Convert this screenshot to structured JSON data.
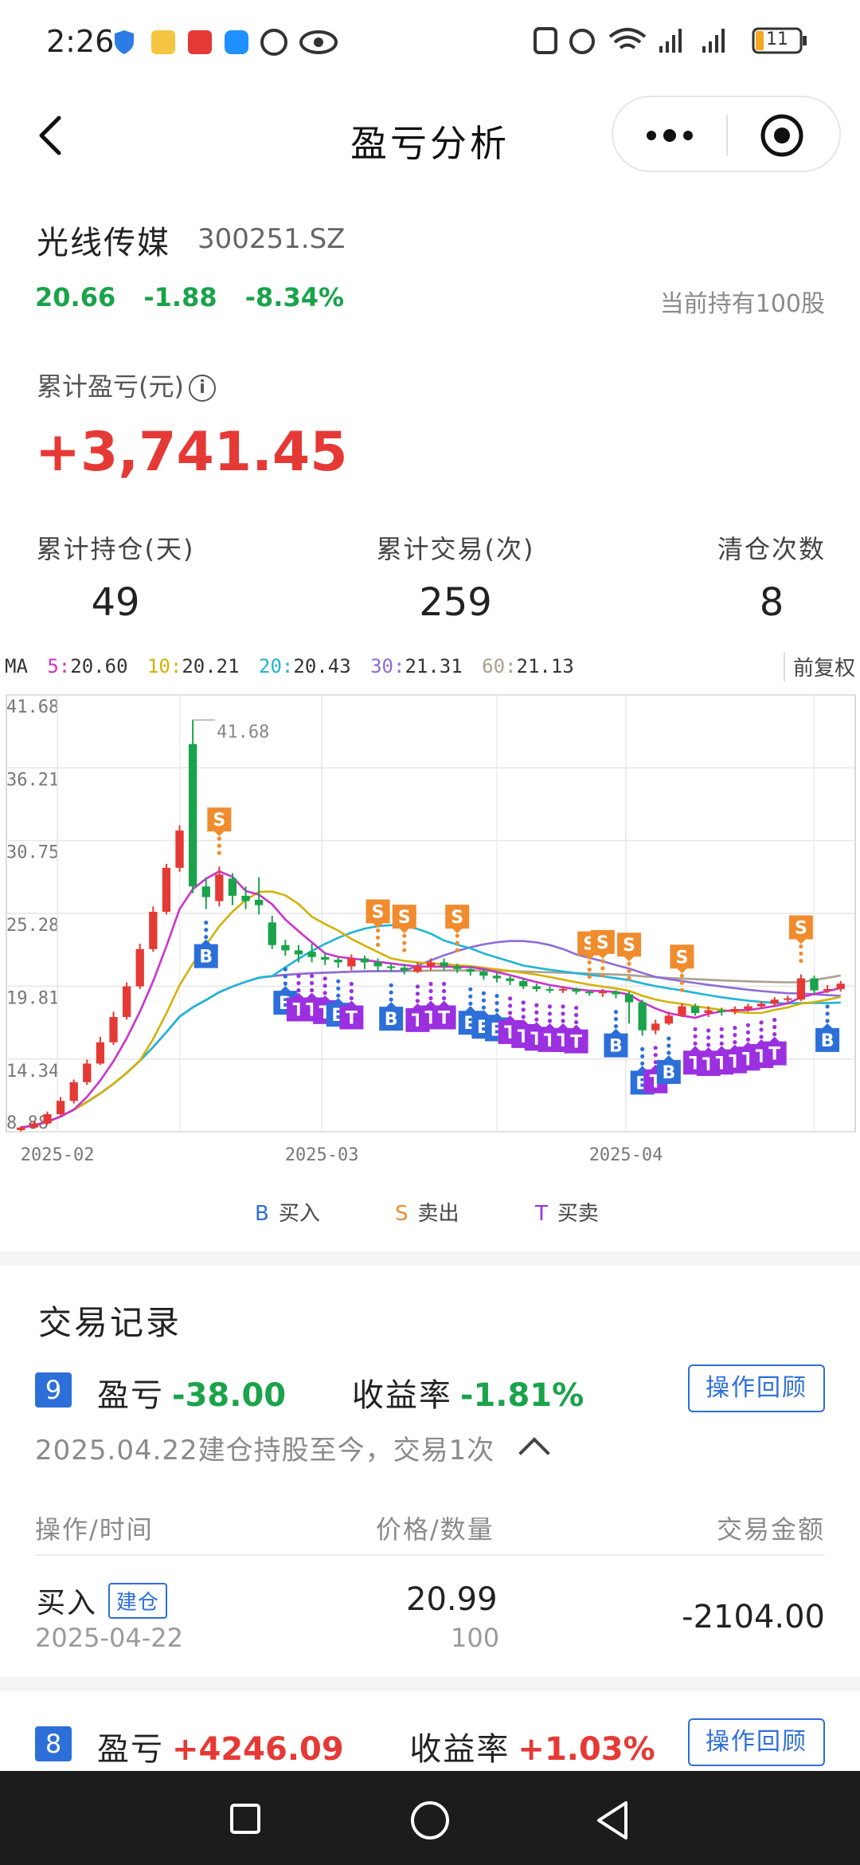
{
  "status_bar": {
    "time": "2:26",
    "battery": "11"
  },
  "nav": {
    "title": "盈亏分析"
  },
  "stock": {
    "name": "光线传媒",
    "code": "300251.SZ",
    "price": "20.66",
    "change": "-1.88",
    "change_pct": "-8.34%",
    "holding": "当前持有100股"
  },
  "summary": {
    "cum_label": "累计盈亏(元)",
    "info_glyph": "i",
    "cum_value": "+3,741.45",
    "stats": [
      {
        "label": "累计持仓(天)",
        "value": "49"
      },
      {
        "label": "累计交易(次)",
        "value": "259"
      },
      {
        "label": "清仓次数",
        "value": "8"
      }
    ]
  },
  "ma_legend": {
    "prefix": "MA",
    "items": [
      {
        "name": "5:",
        "value": "20.60",
        "color": "#cc33cc"
      },
      {
        "name": "10:",
        "value": "20.21",
        "color": "#d4b106"
      },
      {
        "name": "20:",
        "value": "20.43",
        "color": "#1fb5d6"
      },
      {
        "name": "30:",
        "value": "21.31",
        "color": "#8e6bd8"
      },
      {
        "name": "60:",
        "value": "21.13",
        "color": "#aaa08f"
      }
    ],
    "adjust": "前复权"
  },
  "chart_data": {
    "type": "candlestick",
    "y_ticks": [
      "41.68",
      "36.21",
      "30.75",
      "25.28",
      "19.81",
      "14.34",
      "8.88"
    ],
    "ylim": [
      8.88,
      41.68
    ],
    "max_label": "41.68",
    "x_ticks": [
      "2025-02",
      "2025-03",
      "2025-04"
    ],
    "up_color": "#e53935",
    "down_color": "#1aa34a",
    "candles": [
      [
        9.0,
        9.2,
        8.9,
        9.3
      ],
      [
        9.2,
        9.5,
        9.1,
        9.7
      ],
      [
        9.5,
        10.2,
        9.4,
        10.4
      ],
      [
        10.2,
        11.2,
        10.1,
        11.5
      ],
      [
        11.2,
        12.6,
        11.0,
        12.8
      ],
      [
        12.6,
        14.0,
        12.4,
        14.3
      ],
      [
        14.0,
        15.6,
        13.9,
        16.0
      ],
      [
        15.6,
        17.5,
        15.4,
        17.9
      ],
      [
        17.5,
        19.8,
        17.3,
        20.1
      ],
      [
        19.8,
        22.6,
        19.6,
        23.0
      ],
      [
        22.6,
        25.4,
        22.4,
        25.8
      ],
      [
        25.4,
        28.7,
        25.2,
        29.0
      ],
      [
        28.7,
        31.5,
        28.4,
        31.9
      ],
      [
        38.0,
        27.3,
        26.8,
        39.8
      ],
      [
        27.3,
        26.5,
        25.6,
        28.0
      ],
      [
        26.2,
        28.2,
        25.8,
        28.8
      ],
      [
        27.9,
        26.6,
        25.9,
        28.3
      ],
      [
        26.6,
        26.2,
        25.6,
        27.3
      ],
      [
        26.3,
        25.9,
        25.2,
        28.0
      ],
      [
        24.6,
        22.9,
        22.6,
        25.1
      ],
      [
        22.9,
        22.5,
        22.1,
        23.3
      ],
      [
        22.5,
        22.2,
        21.6,
        22.9
      ],
      [
        22.4,
        22.0,
        21.6,
        23.0
      ],
      [
        22.0,
        21.8,
        21.4,
        22.3
      ],
      [
        21.8,
        21.6,
        21.2,
        22.0
      ],
      [
        21.3,
        21.9,
        21.0,
        22.2
      ],
      [
        21.9,
        21.6,
        21.1,
        22.1
      ],
      [
        21.6,
        21.3,
        20.9,
        21.9
      ],
      [
        21.3,
        21.2,
        20.9,
        21.5
      ],
      [
        21.2,
        21.0,
        20.7,
        21.5
      ],
      [
        20.9,
        21.3,
        20.8,
        21.6
      ],
      [
        21.3,
        21.6,
        21.0,
        21.9
      ],
      [
        21.6,
        21.3,
        21.0,
        21.9
      ],
      [
        21.3,
        21.1,
        20.8,
        21.5
      ],
      [
        21.1,
        20.9,
        20.6,
        21.3
      ],
      [
        20.9,
        20.6,
        20.3,
        21.1
      ],
      [
        20.6,
        20.4,
        20.1,
        20.8
      ],
      [
        20.4,
        20.2,
        19.9,
        20.6
      ],
      [
        20.2,
        19.8,
        19.6,
        20.4
      ],
      [
        19.8,
        19.6,
        19.4,
        20.0
      ],
      [
        19.6,
        19.5,
        19.3,
        19.8
      ],
      [
        19.5,
        19.6,
        19.3,
        19.8
      ],
      [
        19.6,
        19.4,
        19.2,
        19.7
      ],
      [
        19.4,
        19.3,
        19.1,
        19.5
      ],
      [
        19.3,
        19.4,
        19.0,
        19.6
      ],
      [
        19.4,
        19.2,
        18.9,
        19.5
      ],
      [
        19.2,
        18.6,
        17.0,
        19.4
      ],
      [
        18.6,
        16.5,
        16.1,
        18.8
      ],
      [
        16.5,
        17.0,
        16.2,
        17.3
      ],
      [
        17.0,
        17.6,
        16.9,
        17.9
      ],
      [
        17.6,
        18.3,
        17.5,
        18.5
      ],
      [
        18.3,
        17.8,
        17.6,
        18.5
      ],
      [
        17.8,
        18.0,
        17.5,
        18.3
      ],
      [
        18.0,
        17.9,
        17.6,
        18.2
      ],
      [
        17.9,
        18.1,
        17.7,
        18.3
      ],
      [
        18.1,
        18.3,
        17.9,
        18.5
      ],
      [
        18.3,
        18.5,
        18.1,
        18.7
      ],
      [
        18.5,
        18.8,
        18.3,
        19.0
      ],
      [
        18.8,
        18.9,
        18.6,
        19.1
      ],
      [
        18.8,
        20.4,
        18.7,
        20.7
      ],
      [
        20.4,
        19.5,
        19.2,
        20.6
      ],
      [
        19.5,
        19.6,
        19.3,
        19.9
      ],
      [
        19.6,
        20.0,
        19.4,
        20.2
      ]
    ],
    "trade_markers": [
      {
        "type": "B",
        "i": 14,
        "side": "below"
      },
      {
        "type": "S",
        "i": 15,
        "side": "above"
      },
      {
        "type": "B",
        "i": 20,
        "side": "below"
      },
      {
        "type": "T",
        "i": 21,
        "side": "below"
      },
      {
        "type": "T",
        "i": 22,
        "side": "below"
      },
      {
        "type": "T",
        "i": 23,
        "side": "below"
      },
      {
        "type": "B",
        "i": 24,
        "side": "below"
      },
      {
        "type": "T",
        "i": 25,
        "side": "below"
      },
      {
        "type": "S",
        "i": 27,
        "side": "above"
      },
      {
        "type": "B",
        "i": 28,
        "side": "below"
      },
      {
        "type": "S",
        "i": 29,
        "side": "above"
      },
      {
        "type": "T",
        "i": 30,
        "side": "below"
      },
      {
        "type": "T",
        "i": 31,
        "side": "below"
      },
      {
        "type": "T",
        "i": 32,
        "side": "below"
      },
      {
        "type": "S",
        "i": 33,
        "side": "above"
      },
      {
        "type": "B",
        "i": 34,
        "side": "below"
      },
      {
        "type": "B",
        "i": 35,
        "side": "below"
      },
      {
        "type": "B",
        "i": 36,
        "side": "below"
      },
      {
        "type": "T",
        "i": 37,
        "side": "below"
      },
      {
        "type": "T",
        "i": 38,
        "side": "below"
      },
      {
        "type": "T",
        "i": 39,
        "side": "below"
      },
      {
        "type": "T",
        "i": 40,
        "side": "below"
      },
      {
        "type": "T",
        "i": 41,
        "side": "below"
      },
      {
        "type": "T",
        "i": 42,
        "side": "below"
      },
      {
        "type": "S",
        "i": 43,
        "side": "above"
      },
      {
        "type": "S",
        "i": 44,
        "side": "above"
      },
      {
        "type": "B",
        "i": 45,
        "side": "below"
      },
      {
        "type": "S",
        "i": 46,
        "side": "above"
      },
      {
        "type": "B",
        "i": 47,
        "side": "below"
      },
      {
        "type": "T",
        "i": 48,
        "side": "below"
      },
      {
        "type": "B",
        "i": 49,
        "side": "below"
      },
      {
        "type": "S",
        "i": 50,
        "side": "above"
      },
      {
        "type": "T",
        "i": 51,
        "side": "below"
      },
      {
        "type": "T",
        "i": 52,
        "side": "below"
      },
      {
        "type": "T",
        "i": 53,
        "side": "below"
      },
      {
        "type": "T",
        "i": 54,
        "side": "below"
      },
      {
        "type": "T",
        "i": 55,
        "side": "below"
      },
      {
        "type": "T",
        "i": 56,
        "side": "below"
      },
      {
        "type": "T",
        "i": 57,
        "side": "below"
      },
      {
        "type": "S",
        "i": 59,
        "side": "above"
      },
      {
        "type": "B",
        "i": 61,
        "side": "below"
      }
    ],
    "marker_colors": {
      "B": "#2d6fd8",
      "S": "#f08c2e",
      "T": "#9b30e0"
    }
  },
  "legend": {
    "items": [
      {
        "letter": "B",
        "label": "买入",
        "color": "#2d6fd8"
      },
      {
        "letter": "S",
        "label": "卖出",
        "color": "#f08c2e"
      },
      {
        "letter": "T",
        "label": "买卖",
        "color": "#9b30e0"
      }
    ]
  },
  "records": {
    "title": "交易记录",
    "pnl_label": "盈亏",
    "yield_label": "收益率",
    "review_label": "操作回顾",
    "items": [
      {
        "no": "9",
        "pnl": "-38.00",
        "yield": "-1.81%",
        "desc": "2025.04.22建仓持股至今，交易1次"
      },
      {
        "no": "8",
        "pnl": "+4246.09",
        "yield": "+1.03%"
      }
    ],
    "table_headers": [
      "操作/时间",
      "价格/数量",
      "交易金额"
    ],
    "row": {
      "op": "买入",
      "tag": "建仓",
      "date": "2025-04-22",
      "price": "20.99",
      "qty": "100",
      "amount": "-2104.00"
    }
  }
}
